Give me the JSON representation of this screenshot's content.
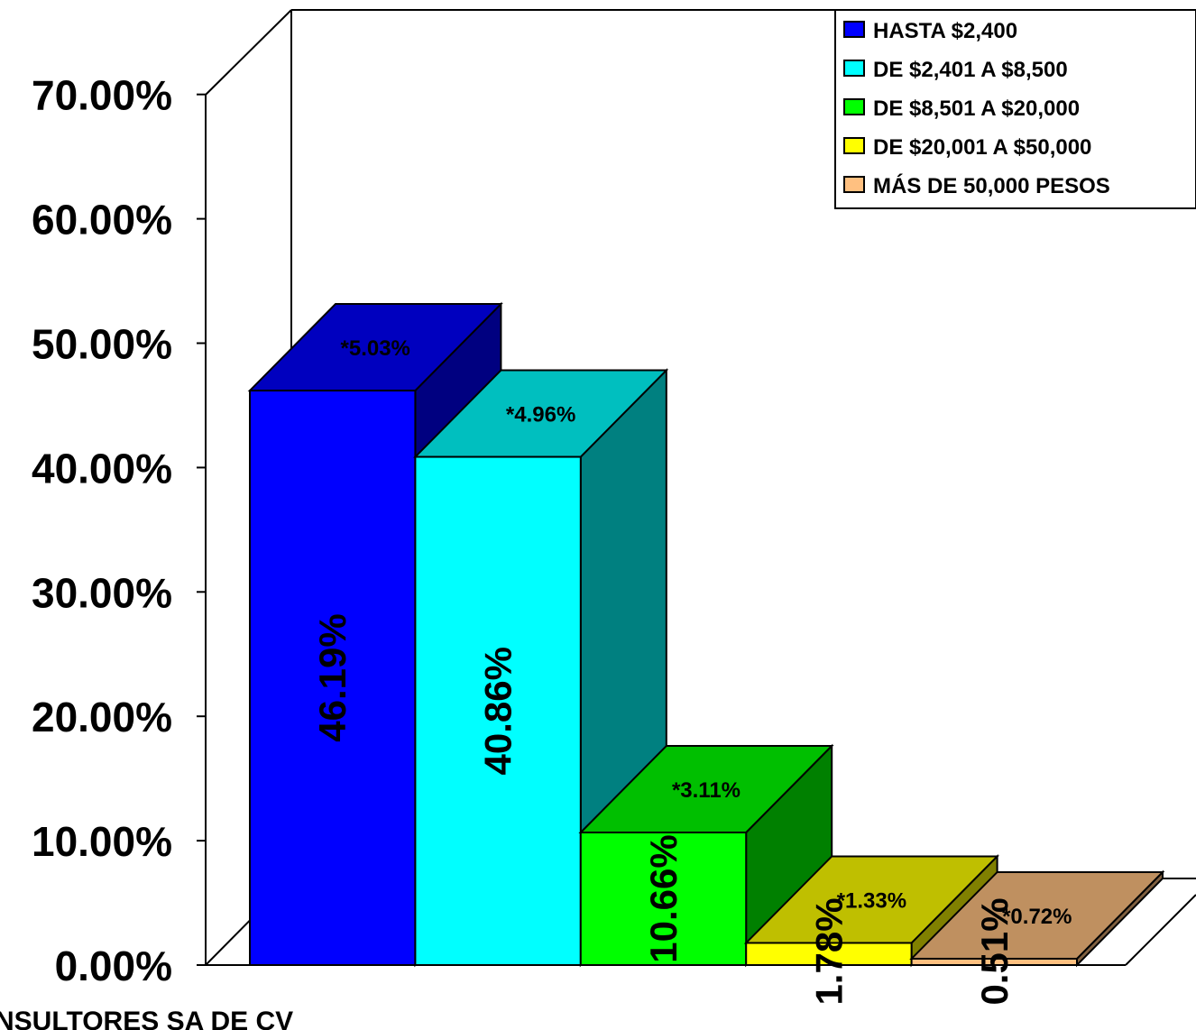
{
  "chart_data": {
    "type": "bar",
    "categories": [
      "HASTA $2,400",
      "DE $2,401 A $8,500",
      "DE $8,501 A $20,000",
      "DE $20,001 A $50,000",
      "MÁS DE 50,000 PESOS"
    ],
    "values": [
      46.19,
      40.86,
      10.66,
      1.78,
      0.51
    ],
    "value_labels": [
      "46.19%",
      "40.86%",
      "10.66%",
      "1.78%",
      "0.51%"
    ],
    "top_labels": [
      "*5.03%",
      "*4.96%",
      "*3.11%",
      "*1.33%",
      "*0.72%"
    ],
    "colors": [
      "#0000FF",
      "#00FFFF",
      "#00FF00",
      "#FFFF00",
      "#FFC080"
    ],
    "yticks": [
      "0.00%",
      "10.00%",
      "20.00%",
      "30.00%",
      "40.00%",
      "50.00%",
      "60.00%",
      "70.00%"
    ],
    "ylim": [
      0,
      70
    ],
    "legend_position": "top-right",
    "grid": false,
    "three_d": true
  },
  "footer_text": "NSULTORES SA DE CV"
}
